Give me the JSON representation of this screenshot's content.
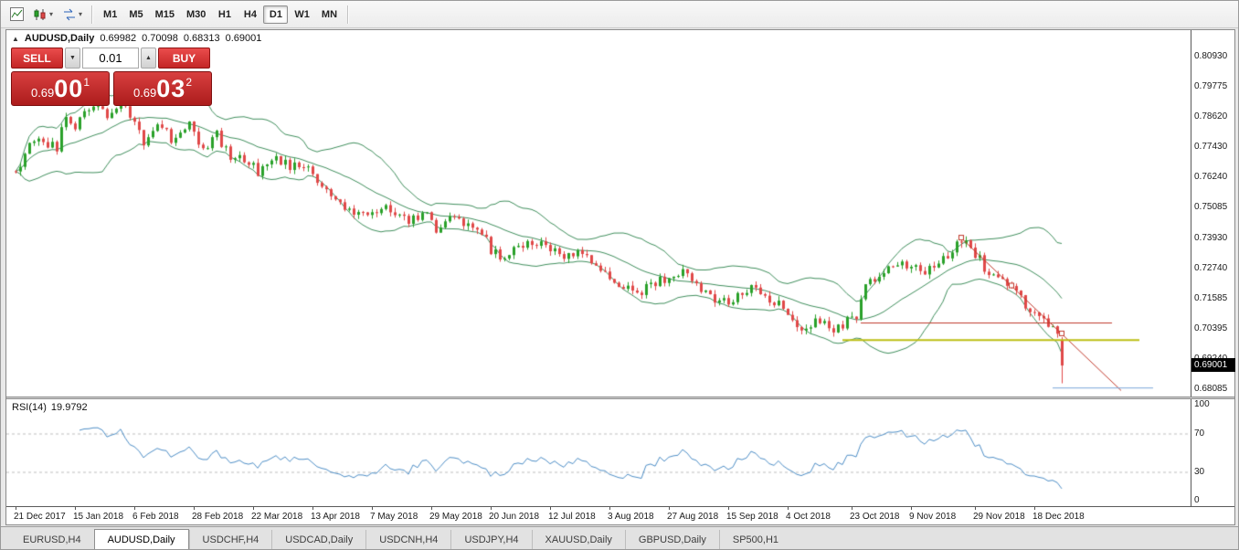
{
  "toolbar": {
    "timeframes": [
      {
        "label": "M1",
        "active": false
      },
      {
        "label": "M5",
        "active": false
      },
      {
        "label": "M15",
        "active": false
      },
      {
        "label": "M30",
        "active": false
      },
      {
        "label": "H1",
        "active": false
      },
      {
        "label": "H4",
        "active": false
      },
      {
        "label": "D1",
        "active": true
      },
      {
        "label": "W1",
        "active": false
      },
      {
        "label": "MN",
        "active": false
      }
    ]
  },
  "chart": {
    "symbol_title": "AUDUSD,Daily",
    "ohlc": {
      "open": "0.69982",
      "high": "0.70098",
      "low": "0.68313",
      "close": "0.69001"
    },
    "rsi_label_name": "RSI(14)",
    "rsi_label_value": "19.9792"
  },
  "trade_panel": {
    "sell_label": "SELL",
    "buy_label": "BUY",
    "lot": "0.01",
    "bid": {
      "small": "0.69",
      "big": "00",
      "sup": "1"
    },
    "ask": {
      "small": "0.69",
      "big": "03",
      "sup": "2"
    }
  },
  "tabs": [
    {
      "label": "EURUSD,H4",
      "active": false
    },
    {
      "label": "AUDUSD,Daily",
      "active": true
    },
    {
      "label": "USDCHF,H4",
      "active": false
    },
    {
      "label": "USDCAD,Daily",
      "active": false
    },
    {
      "label": "USDCNH,H4",
      "active": false
    },
    {
      "label": "USDJPY,H4",
      "active": false
    },
    {
      "label": "XAUUSD,Daily",
      "active": false
    },
    {
      "label": "GBPUSD,Daily",
      "active": false
    },
    {
      "label": "SP500,H1",
      "active": false
    }
  ],
  "chart_data": {
    "type": "candlestick",
    "symbol": "AUDUSD",
    "timeframe": "Daily",
    "bars_count": 230,
    "last_ohlc": [
      0.69982,
      0.70098,
      0.68313,
      0.69001
    ],
    "current_price": "0.69001",
    "y_axis_labels": [
      "0.80930",
      "0.79775",
      "0.78620",
      "0.77430",
      "0.76240",
      "0.75085",
      "0.73930",
      "0.72740",
      "0.71585",
      "0.70395",
      "0.69240",
      "0.68085"
    ],
    "x_axis": {
      "labels": [
        "21 Dec 2017",
        "15 Jan 2018",
        "6 Feb 2018",
        "28 Feb 2018",
        "22 Mar 2018",
        "13 Apr 2018",
        "7 May 2018",
        "29 May 2018",
        "20 Jun 2018",
        "12 Jul 2018",
        "3 Aug 2018",
        "27 Aug 2018",
        "15 Sep 2018",
        "4 Oct 2018",
        "23 Oct 2018",
        "9 Nov 2018",
        "29 Nov 2018",
        "18 Dec 2018"
      ],
      "bars": [
        0,
        13,
        26,
        39,
        52,
        65,
        78,
        91,
        104,
        117,
        130,
        143,
        156,
        169,
        183,
        196,
        210,
        223
      ]
    },
    "price_path_note": "close-price anchors read off the chart; candles interpolated between anchors",
    "price_path": [
      [
        0,
        0.765
      ],
      [
        4,
        0.777
      ],
      [
        9,
        0.774
      ],
      [
        11,
        0.787
      ],
      [
        13,
        0.783
      ],
      [
        17,
        0.7915
      ],
      [
        20,
        0.786
      ],
      [
        23,
        0.7935
      ],
      [
        26,
        0.7845
      ],
      [
        28,
        0.776
      ],
      [
        31,
        0.7845
      ],
      [
        34,
        0.778
      ],
      [
        38,
        0.783
      ],
      [
        41,
        0.774
      ],
      [
        44,
        0.779
      ],
      [
        47,
        0.7705
      ],
      [
        50,
        0.769
      ],
      [
        53,
        0.765
      ],
      [
        56,
        0.7705
      ],
      [
        60,
        0.767
      ],
      [
        64,
        0.765
      ],
      [
        67,
        0.76
      ],
      [
        70,
        0.753
      ],
      [
        74,
        0.7475
      ],
      [
        78,
        0.7495
      ],
      [
        82,
        0.751
      ],
      [
        86,
        0.746
      ],
      [
        90,
        0.7475
      ],
      [
        92,
        0.7425
      ],
      [
        95,
        0.7475
      ],
      [
        98,
        0.744
      ],
      [
        102,
        0.7405
      ],
      [
        104,
        0.735
      ],
      [
        107,
        0.7315
      ],
      [
        110,
        0.735
      ],
      [
        113,
        0.737
      ],
      [
        117,
        0.735
      ],
      [
        120,
        0.7315
      ],
      [
        123,
        0.735
      ],
      [
        126,
        0.73
      ],
      [
        130,
        0.7245
      ],
      [
        133,
        0.721
      ],
      [
        136,
        0.7175
      ],
      [
        139,
        0.721
      ],
      [
        143,
        0.7245
      ],
      [
        146,
        0.7265
      ],
      [
        149,
        0.721
      ],
      [
        152,
        0.716
      ],
      [
        156,
        0.714
      ],
      [
        159,
        0.7175
      ],
      [
        162,
        0.721
      ],
      [
        165,
        0.716
      ],
      [
        169,
        0.7105
      ],
      [
        172,
        0.705
      ],
      [
        176,
        0.707
      ],
      [
        179,
        0.7045
      ],
      [
        184,
        0.7085
      ],
      [
        186,
        0.7215
      ],
      [
        189,
        0.7245
      ],
      [
        192,
        0.728
      ],
      [
        196,
        0.73
      ],
      [
        199,
        0.7265
      ],
      [
        202,
        0.73
      ],
      [
        205,
        0.7335
      ],
      [
        207,
        0.7385
      ],
      [
        210,
        0.7335
      ],
      [
        212,
        0.728
      ],
      [
        215,
        0.7245
      ],
      [
        218,
        0.721
      ],
      [
        221,
        0.714
      ],
      [
        223,
        0.7085
      ],
      [
        225,
        0.707
      ],
      [
        227,
        0.7048
      ],
      [
        228,
        0.7035
      ],
      [
        229,
        0.69
      ]
    ],
    "overlays": {
      "bollinger": {
        "period": 20,
        "deviation": 2,
        "color": "#3f8e5c"
      }
    },
    "objects": [
      {
        "type": "trendline",
        "from": [
          207,
          0.7394
        ],
        "to": [
          229,
          0.7024
        ],
        "ray_to": [
          242,
          0.6805
        ],
        "color": "#c0392b",
        "width": 1,
        "handles": true
      },
      {
        "type": "segment",
        "from": [
          185,
          0.7066
        ],
        "to": [
          240,
          0.7066
        ],
        "color": "#c0392b",
        "width": 1,
        "handles": false
      },
      {
        "type": "segment",
        "from": [
          181,
          0.7
        ],
        "to": [
          246,
          0.7
        ],
        "color": "#bcbe14",
        "width": 2,
        "handles": false
      },
      {
        "type": "segment",
        "from": [
          227,
          0.6815
        ],
        "to": [
          249,
          0.6815
        ],
        "color": "#7aa6d8",
        "width": 1,
        "handles": false
      }
    ],
    "indicator": {
      "name": "RSI",
      "period": 14,
      "value": 19.9792,
      "levels": [
        70,
        30
      ],
      "y_axis_labels": [
        "100",
        "70",
        "30",
        "0"
      ]
    },
    "colors": {
      "up": "#2aa12a",
      "down": "#e04848",
      "bollinger": "#3f8e5c",
      "rsi": "#4e8ec6",
      "level_dash": "#bdbdbd"
    }
  }
}
